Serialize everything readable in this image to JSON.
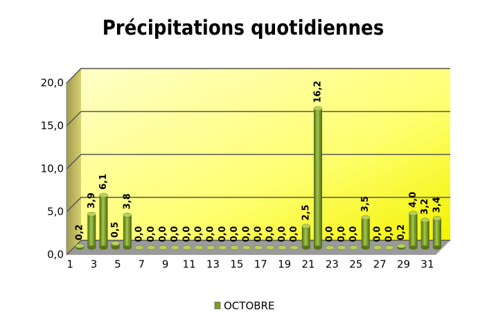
{
  "chart_data": {
    "type": "bar",
    "title": "Précipitations quotidiennes",
    "categories": [
      "1",
      null,
      "3",
      null,
      "5",
      null,
      "7",
      null,
      "9",
      null,
      "11",
      null,
      "13",
      null,
      "15",
      null,
      "17",
      null,
      "19",
      null,
      "21",
      null,
      "23",
      null,
      "25",
      null,
      "27",
      null,
      "29",
      null,
      "31"
    ],
    "series": [
      {
        "name": "OCTOBRE",
        "color": "#7a9a2a",
        "values": [
          0.2,
          3.9,
          6.1,
          0.5,
          3.8,
          0,
          0,
          0,
          0,
          0,
          0,
          0,
          0,
          0,
          0,
          0,
          0,
          0,
          0,
          2.5,
          16.2,
          0,
          0,
          0,
          3.5,
          0,
          0,
          0.2,
          4.0,
          3.2,
          3.4
        ],
        "value_labels": [
          "0,2",
          "3,9",
          "6,1",
          "0,5",
          "3,8",
          "0,0",
          "0,0",
          "0,0",
          "0,0",
          "0,0",
          "0,0",
          "0,0",
          "0,0",
          "0,0",
          "0,0",
          "0,0",
          "0,0",
          "0,0",
          "0,0",
          "2,5",
          "16,2",
          "0,0",
          "0,0",
          "0,0",
          "3,5",
          "0,0",
          "0,0",
          "0,2",
          "4,0",
          "3,2",
          "3,4"
        ]
      }
    ],
    "ylim": [
      0,
      20
    ],
    "yticks": [
      {
        "value": 0,
        "label": "0,0"
      },
      {
        "value": 5,
        "label": "5,0"
      },
      {
        "value": 10,
        "label": "10,0"
      },
      {
        "value": 15,
        "label": "15,0"
      },
      {
        "value": 20,
        "label": "20,0"
      }
    ],
    "grid": true,
    "legend": "bottom"
  }
}
